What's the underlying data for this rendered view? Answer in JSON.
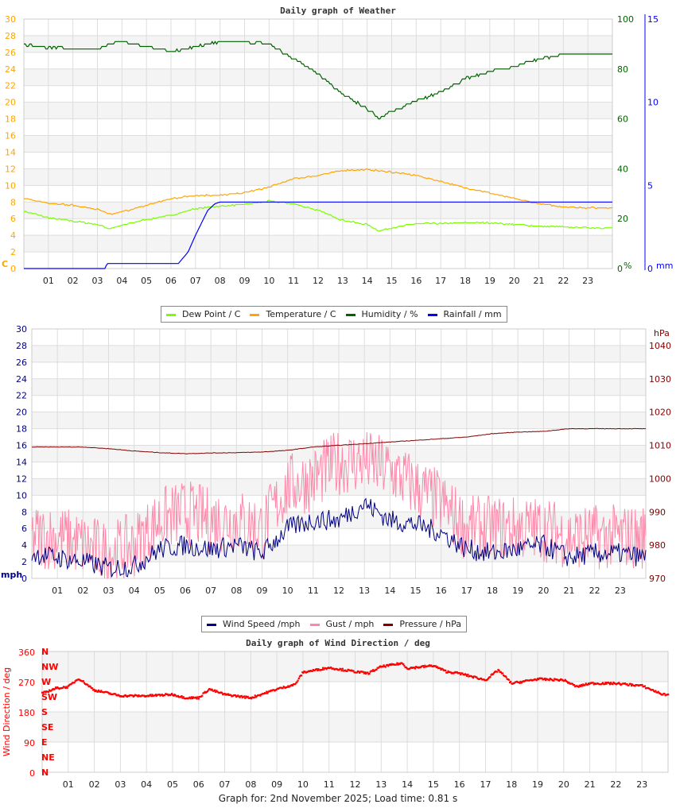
{
  "hours": [
    "01",
    "02",
    "03",
    "04",
    "05",
    "06",
    "07",
    "08",
    "09",
    "10",
    "11",
    "12",
    "13",
    "14",
    "15",
    "16",
    "17",
    "18",
    "19",
    "20",
    "21",
    "22",
    "23"
  ],
  "chart_data": [
    {
      "type": "line",
      "title": "Daily graph of Weather",
      "left_axis": {
        "unit": "C",
        "ylim": [
          0,
          30
        ],
        "ticks": [
          0,
          2,
          4,
          6,
          8,
          10,
          12,
          14,
          16,
          18,
          20,
          22,
          24,
          26,
          28,
          30
        ]
      },
      "right_axis_humidity": {
        "unit": "%",
        "ylim": [
          0,
          100
        ],
        "ticks": [
          0,
          20,
          40,
          60,
          80,
          100
        ]
      },
      "right_axis_rain": {
        "unit": "mm",
        "ylim": [
          0,
          15
        ],
        "ticks": [
          0,
          5,
          10,
          15
        ]
      },
      "xlim": [
        0,
        24
      ],
      "grid": true,
      "legend": "bottom",
      "series": [
        {
          "name": "Dew Point / C",
          "color": "#7cfc00",
          "axis": "left",
          "x": [
            0,
            1,
            2,
            3,
            3.5,
            4,
            5,
            6,
            7,
            8,
            9,
            10,
            11,
            12,
            13,
            14,
            14.5,
            15,
            16,
            17,
            18,
            19,
            20,
            21,
            22,
            23,
            24
          ],
          "y": [
            6.9,
            6.1,
            5.7,
            5.3,
            4.8,
            5.2,
            5.9,
            6.4,
            7.2,
            7.5,
            7.7,
            8.1,
            7.8,
            7.0,
            5.8,
            5.3,
            4.5,
            4.9,
            5.4,
            5.4,
            5.5,
            5.5,
            5.3,
            5.1,
            5.0,
            4.9,
            4.9
          ]
        },
        {
          "name": "Temperature / C",
          "color": "#ffa500",
          "axis": "left",
          "x": [
            0,
            1,
            2,
            3,
            3.5,
            4,
            5,
            6,
            7,
            8,
            9,
            10,
            11,
            12,
            13,
            14,
            15,
            16,
            17,
            18,
            19,
            20,
            21,
            22,
            23,
            24
          ],
          "y": [
            8.4,
            7.9,
            7.6,
            7.1,
            6.5,
            6.8,
            7.6,
            8.4,
            8.8,
            8.8,
            9.1,
            9.8,
            10.8,
            11.2,
            11.8,
            11.9,
            11.6,
            11.2,
            10.5,
            9.7,
            9.1,
            8.4,
            7.8,
            7.4,
            7.3,
            7.3
          ]
        },
        {
          "name": "Humidity / %",
          "color": "#006400",
          "axis": "humidity",
          "x": [
            0,
            0.5,
            2,
            3,
            3.5,
            4,
            5,
            6,
            7,
            8,
            9,
            10,
            10.5,
            11,
            12,
            13,
            14,
            14.5,
            15,
            16,
            17,
            18,
            19,
            20,
            21,
            22,
            23,
            24
          ],
          "y": [
            90,
            89,
            88,
            88,
            90,
            91,
            89,
            87,
            89,
            91,
            91,
            90,
            87,
            84,
            78,
            70,
            64,
            60,
            63,
            67,
            71,
            76,
            79,
            81,
            84,
            86,
            86,
            86
          ]
        },
        {
          "name": "Rainfall / mm",
          "color": "#0000ff",
          "axis": "rain",
          "x": [
            0,
            3.3,
            3.4,
            6.3,
            6.7,
            7,
            7.5,
            7.8,
            8,
            24
          ],
          "y": [
            0,
            0,
            0.3,
            0.3,
            1,
            2,
            3.5,
            3.9,
            4,
            4
          ]
        }
      ]
    },
    {
      "type": "line",
      "left_axis": {
        "unit": "mph",
        "ylim": [
          0,
          30
        ],
        "ticks": [
          0,
          2,
          4,
          6,
          8,
          10,
          12,
          14,
          16,
          18,
          20,
          22,
          24,
          26,
          28,
          30
        ]
      },
      "right_axis": {
        "unit": "hPa",
        "ylim": [
          970,
          1045
        ],
        "ticks": [
          970,
          980,
          990,
          1000,
          1010,
          1020,
          1030,
          1040
        ]
      },
      "xlim": [
        0,
        24
      ],
      "grid": true,
      "legend": "bottom",
      "series": [
        {
          "name": "Gust / mph",
          "color": "#ff88aa",
          "axis": "left",
          "x": [
            0,
            1,
            2,
            3,
            4,
            5,
            6,
            7,
            8,
            9,
            10,
            11,
            12,
            13,
            14,
            15,
            16,
            17,
            18,
            19,
            20,
            21,
            22,
            23,
            24
          ],
          "y": [
            5,
            5,
            4,
            3,
            4,
            7,
            8,
            7,
            7,
            6,
            11,
            12,
            14,
            14,
            13,
            11,
            9,
            6,
            6,
            6,
            6,
            5,
            5,
            5,
            5
          ]
        },
        {
          "name": "Wind Speed /mph",
          "color": "#000080",
          "axis": "left",
          "x": [
            0,
            1,
            2,
            3,
            4,
            5,
            6,
            7,
            8,
            9,
            10,
            11,
            12,
            13,
            14,
            15,
            16,
            17,
            18,
            19,
            20,
            21,
            22,
            23,
            24
          ],
          "y": [
            3,
            2.5,
            2,
            1.2,
            1.5,
            3.5,
            4,
            3.5,
            4,
            3,
            6,
            7,
            7,
            9,
            7,
            6.5,
            5.5,
            3.5,
            3,
            3.5,
            4,
            2.5,
            3,
            3,
            2.5
          ]
        },
        {
          "name": "Pressure / hPa",
          "color": "#800000",
          "axis": "right",
          "x": [
            0,
            2,
            3,
            4,
            5,
            6,
            7,
            8,
            9,
            10,
            11,
            12,
            13,
            14,
            15,
            16,
            17,
            18,
            19,
            20,
            21,
            22,
            23,
            24
          ],
          "y": [
            1009.5,
            1009.5,
            1009,
            1008.3,
            1007.8,
            1007.5,
            1007.7,
            1007.8,
            1008,
            1008.5,
            1009.5,
            1010,
            1010.5,
            1011,
            1011.5,
            1012,
            1012.5,
            1013.5,
            1014,
            1014.2,
            1015,
            1015,
            1015,
            1015
          ]
        }
      ]
    },
    {
      "type": "scatter",
      "title": "Daily graph of Wind Direction / deg",
      "ylabel": "Wind Direction / deg",
      "ylim": [
        0,
        360
      ],
      "ticks": [
        0,
        90,
        180,
        270,
        360
      ],
      "compass": [
        "N",
        "NE",
        "E",
        "SE",
        "S",
        "SW",
        "W",
        "NW",
        "N"
      ],
      "xlim": [
        0,
        24
      ],
      "grid": true,
      "series": [
        {
          "color": "#ff0000",
          "x": [
            0,
            0.5,
            1,
            1.4,
            2,
            3,
            4,
            5,
            5.5,
            6,
            6.4,
            7,
            8,
            9,
            9.7,
            10,
            11,
            12,
            12.5,
            13,
            13.8,
            14,
            15,
            15.5,
            16,
            17,
            17.5,
            18,
            19,
            20,
            20.5,
            21,
            22,
            23,
            23.8
          ],
          "y": [
            235,
            250,
            255,
            280,
            245,
            228,
            228,
            232,
            222,
            222,
            248,
            232,
            222,
            248,
            262,
            298,
            312,
            300,
            295,
            315,
            325,
            310,
            318,
            300,
            295,
            275,
            305,
            265,
            278,
            275,
            255,
            265,
            265,
            258,
            232
          ]
        }
      ]
    }
  ],
  "footer": "Graph for: 2nd November 2025; Load time: 0.81 s"
}
